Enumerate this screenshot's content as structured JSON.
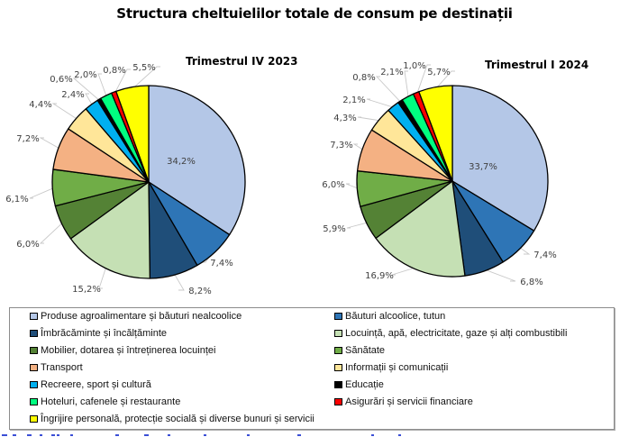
{
  "chart_data": [
    {
      "type": "pie",
      "title": "Structura cheltuielilor totale de consum pe destinații",
      "subtitle": "Trimestrul  IV 2023",
      "categories": [
        "Produse agroalimentare și băuturi nealcoolice",
        "Băuturi alcoolice, tutun",
        "Îmbrăcăminte și încălțăminte",
        "Locuință, apă, electricitate, gaze și alți combustibili",
        "Mobilier,  dotarea și întreținerea locuinței",
        "Sănătate",
        "Transport",
        "Informații și comunicații",
        "Recreere, sport și cultură",
        "Educație",
        "Hoteluri,  cafenele și restaurante",
        "Asigurări și servicii financiare",
        "Îngrijire personală, protecție socială și diverse bunuri și servicii"
      ],
      "values": [
        34.2,
        7.4,
        8.2,
        15.2,
        6.0,
        6.1,
        7.2,
        4.4,
        2.4,
        0.6,
        2.0,
        0.8,
        5.5
      ],
      "labels": [
        "34,2%",
        "7,4%",
        "8,2%",
        "15,2%",
        "6,0%",
        "6,1%",
        "7,2%",
        "4,4%",
        "2,4%",
        "0,6%",
        "2,0%",
        "0,8%",
        "5,5%"
      ],
      "unit": "%"
    },
    {
      "type": "pie",
      "title": "Structura cheltuielilor totale de consum pe destinații",
      "subtitle": "Trimestrul  I 2024",
      "categories": [
        "Produse agroalimentare și băuturi nealcoolice",
        "Băuturi alcoolice, tutun",
        "Îmbrăcăminte și încălțăminte",
        "Locuință, apă, electricitate, gaze și alți combustibili",
        "Mobilier,  dotarea și întreținerea locuinței",
        "Sănătate",
        "Transport",
        "Informații și comunicații",
        "Recreere, sport și cultură",
        "Educație",
        "Hoteluri,  cafenele și restaurante",
        "Asigurări și servicii financiare",
        "Îngrijire personală, protecție socială și diverse bunuri și servicii"
      ],
      "values": [
        33.7,
        7.4,
        6.8,
        16.9,
        5.9,
        6.0,
        7.3,
        4.3,
        2.1,
        0.8,
        2.1,
        1.0,
        5.7
      ],
      "labels": [
        "33,7%",
        "7,4%",
        "6,8%",
        "16,9%",
        "5,9%",
        "6,0%",
        "7,3%",
        "4,3%",
        "2,1%",
        "0,8%",
        "2,1%",
        "1,0%",
        "5,7%"
      ],
      "unit": "%"
    }
  ],
  "title": "Structura cheltuielilor totale de consum pe destinații",
  "subtitles": {
    "left": "Trimestrul  IV 2023",
    "right": "Trimestrul  I 2024"
  },
  "legend": {
    "placement": "bottom",
    "items": [
      {
        "label": "Produse agroalimentare și băuturi nealcoolice",
        "color": "#b4c7e7"
      },
      {
        "label": "Băuturi alcoolice, tutun",
        "color": "#2e75b6"
      },
      {
        "label": "Îmbrăcăminte și încălțăminte",
        "color": "#1f4e79"
      },
      {
        "label": "Locuință, apă, electricitate, gaze și alți combustibili",
        "color": "#c5e0b4"
      },
      {
        "label": "Mobilier,  dotarea și întreținerea locuinței",
        "color": "#548235"
      },
      {
        "label": "Sănătate",
        "color": "#70ad47"
      },
      {
        "label": "Transport",
        "color": "#f4b183"
      },
      {
        "label": "Informații și comunicații",
        "color": "#ffe699"
      },
      {
        "label": "Recreere, sport și cultură",
        "color": "#00b0f0"
      },
      {
        "label": "Educație",
        "color": "#000000"
      },
      {
        "label": "Hoteluri,  cafenele și restaurante",
        "color": "#00ff80"
      },
      {
        "label": "Asigurări și servicii financiare",
        "color": "#ff0000"
      },
      {
        "label": "Îngrijire personală, protecție socială și diverse bunuri și servicii",
        "color": "#ffff00"
      }
    ]
  }
}
